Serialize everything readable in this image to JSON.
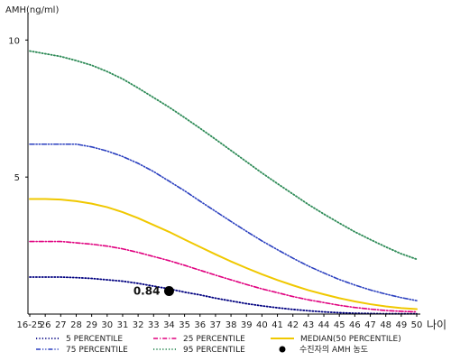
{
  "chart_data": {
    "type": "line",
    "ylabel": "AMH(ng/ml)",
    "xlabel": "나이",
    "categories": [
      "16-25",
      "26",
      "27",
      "28",
      "29",
      "30",
      "31",
      "32",
      "33",
      "34",
      "35",
      "36",
      "37",
      "38",
      "39",
      "40",
      "41",
      "42",
      "43",
      "44",
      "45",
      "46",
      "47",
      "48",
      "49",
      "50"
    ],
    "ylim": [
      0,
      11
    ],
    "yticks": [
      5,
      10
    ],
    "grid": false,
    "legend_position": "bottom",
    "series": [
      {
        "name": "5 PERCENTILE",
        "color": "#000080",
        "style": "dotted",
        "values": [
          1.35,
          1.35,
          1.35,
          1.33,
          1.3,
          1.25,
          1.2,
          1.12,
          1.02,
          0.92,
          0.8,
          0.7,
          0.58,
          0.48,
          0.38,
          0.3,
          0.23,
          0.17,
          0.12,
          0.08,
          0.05,
          0.03,
          0.02,
          0.01,
          0.01,
          0.01
        ]
      },
      {
        "name": "25 PERCENTILE",
        "color": "#e0007f",
        "style": "dash-dot",
        "values": [
          2.65,
          2.65,
          2.65,
          2.6,
          2.55,
          2.48,
          2.38,
          2.25,
          2.1,
          1.95,
          1.78,
          1.6,
          1.42,
          1.25,
          1.08,
          0.92,
          0.78,
          0.64,
          0.52,
          0.42,
          0.32,
          0.24,
          0.18,
          0.13,
          0.1,
          0.08
        ]
      },
      {
        "name": "MEDIAN(50 PERCENTILE)",
        "color": "#f0c800",
        "style": "solid",
        "values": [
          4.2,
          4.2,
          4.18,
          4.12,
          4.03,
          3.9,
          3.72,
          3.5,
          3.25,
          3.0,
          2.72,
          2.45,
          2.18,
          1.92,
          1.68,
          1.45,
          1.24,
          1.05,
          0.87,
          0.72,
          0.58,
          0.46,
          0.36,
          0.28,
          0.22,
          0.18
        ]
      },
      {
        "name": "75 PERCENTILE",
        "color": "#2a3fbf",
        "style": "dash-dot-dot",
        "values": [
          6.2,
          6.2,
          6.2,
          6.2,
          6.1,
          5.95,
          5.75,
          5.5,
          5.2,
          4.85,
          4.5,
          4.12,
          3.75,
          3.38,
          3.02,
          2.67,
          2.35,
          2.04,
          1.75,
          1.5,
          1.26,
          1.06,
          0.88,
          0.73,
          0.6,
          0.49
        ]
      },
      {
        "name": "95 PERCENTILE",
        "color": "#2e8b57",
        "style": "dotted",
        "values": [
          9.6,
          9.5,
          9.4,
          9.25,
          9.08,
          8.85,
          8.58,
          8.25,
          7.9,
          7.55,
          7.17,
          6.78,
          6.38,
          5.97,
          5.56,
          5.15,
          4.76,
          4.38,
          4.0,
          3.65,
          3.32,
          3.0,
          2.72,
          2.45,
          2.2,
          2.0
        ]
      }
    ],
    "marker": {
      "name": "수진자의 AMH 농도",
      "x": "34",
      "y": 0.84,
      "label": "0.84",
      "color": "#000000"
    }
  }
}
